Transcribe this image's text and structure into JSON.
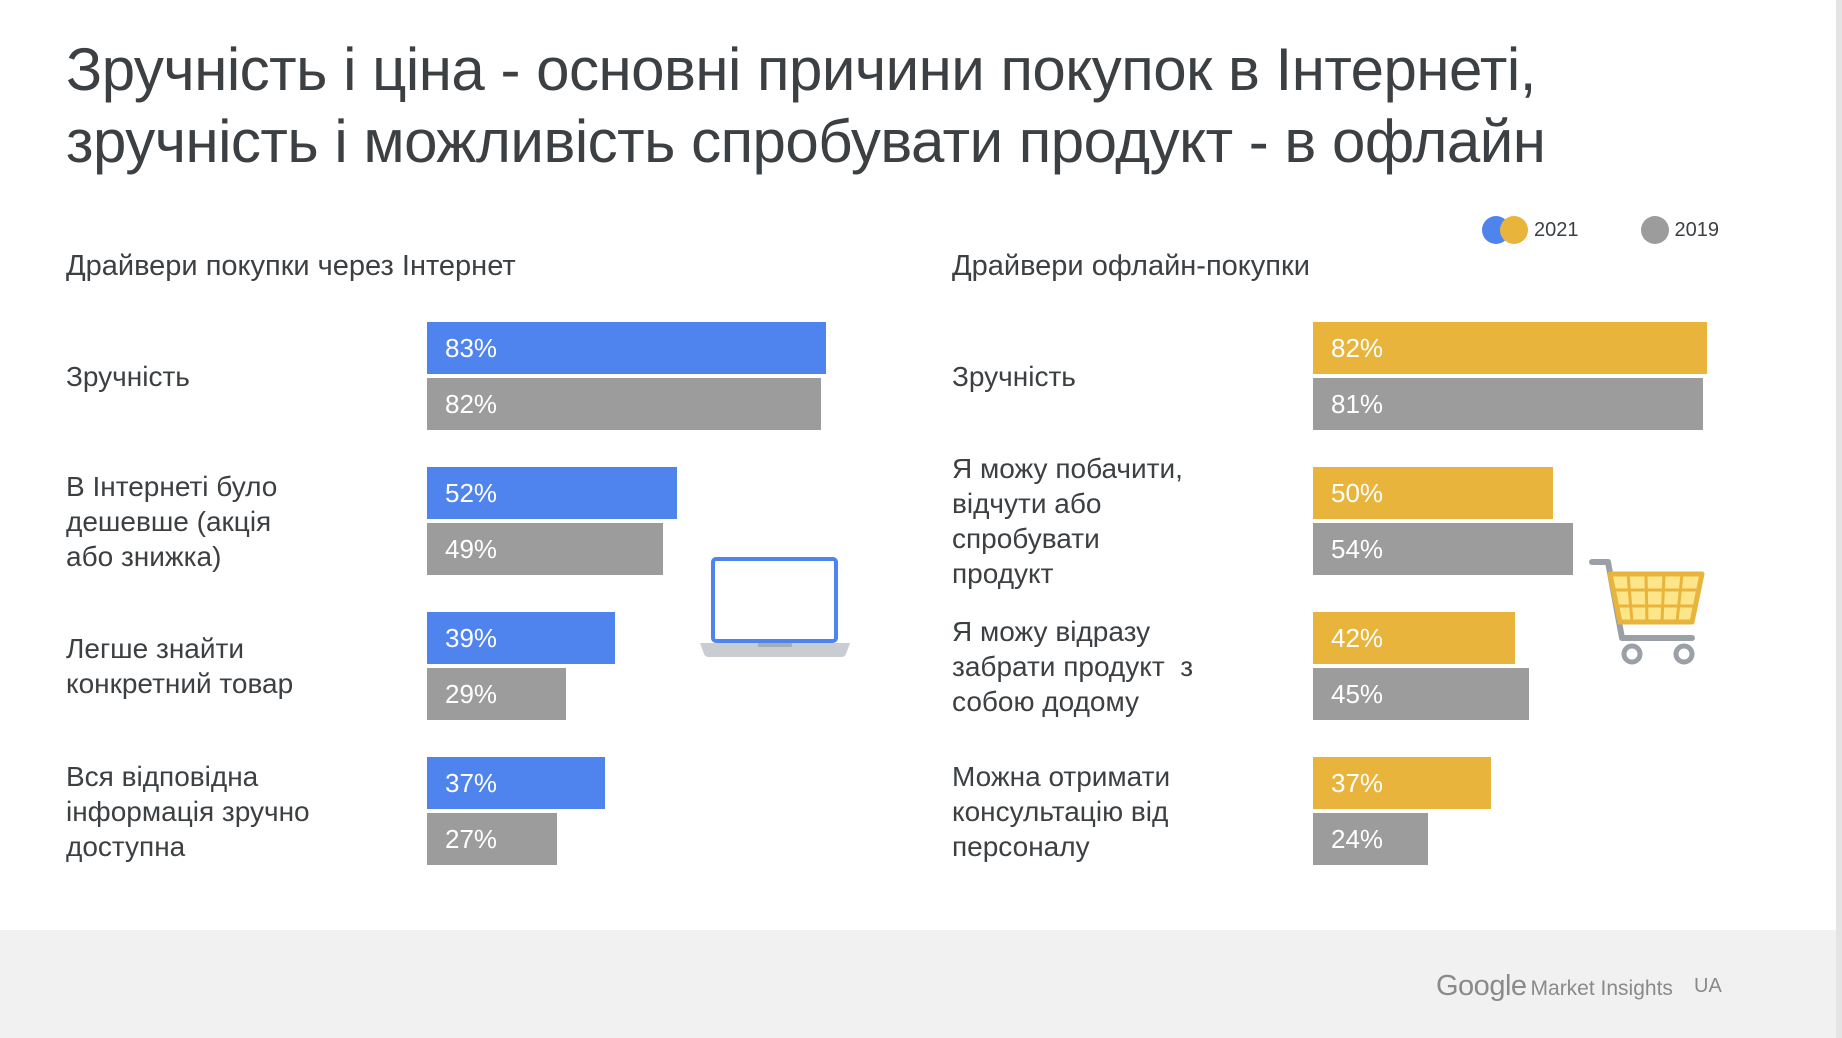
{
  "title_lines": [
    "Зручність і ціна - основні причини покупок в Інтернеті,",
    "зручність і можливість спробувати продукт - в офлайн"
  ],
  "legend": {
    "current_label": "2021",
    "previous_label": "2019"
  },
  "colors": {
    "online_2021": "#4f84ee",
    "offline_2021": "#e9b43b",
    "year_2019": "#9c9c9c"
  },
  "footer": {
    "brand_google": "Google",
    "brand_product": "Market Insights",
    "country": "UA"
  },
  "icons": [
    "laptop-icon",
    "shopping-cart-icon"
  ],
  "chart_data": [
    {
      "type": "bar",
      "orientation": "horizontal",
      "title": "Драйвери покупки через Інтернет",
      "categories": [
        [
          "Зручність"
        ],
        [
          "В Інтернеті було",
          "дешевше (акція",
          "або знижка)"
        ],
        [
          "Легше знайти",
          "конкретний товар"
        ],
        [
          "Вся відповідна",
          "інформація зручно",
          "доступна"
        ]
      ],
      "series": [
        {
          "name": "2021",
          "values": [
            83,
            52,
            39,
            37
          ],
          "labels": [
            "83%",
            "52%",
            "39%",
            "37%"
          ]
        },
        {
          "name": "2019",
          "values": [
            82,
            49,
            29,
            27
          ],
          "labels": [
            "82%",
            "49%",
            "29%",
            "27%"
          ]
        }
      ],
      "unit": "%"
    },
    {
      "type": "bar",
      "orientation": "horizontal",
      "title": "Драйвери офлайн-покупки",
      "categories": [
        [
          "Зручність"
        ],
        [
          "Я можу побачити,",
          "відчути або",
          "спробувати",
          "продукт"
        ],
        [
          "Я можу відразу",
          "забрати продукт  з",
          "собою додому"
        ],
        [
          "Можна отримати",
          "консультацію від",
          "персоналу"
        ]
      ],
      "series": [
        {
          "name": "2021",
          "values": [
            82,
            50,
            42,
            37
          ],
          "labels": [
            "82%",
            "50%",
            "42%",
            "37%"
          ]
        },
        {
          "name": "2019",
          "values": [
            81,
            54,
            45,
            24
          ],
          "labels": [
            "81%",
            "54%",
            "45%",
            "24%"
          ]
        }
      ],
      "unit": "%"
    }
  ]
}
